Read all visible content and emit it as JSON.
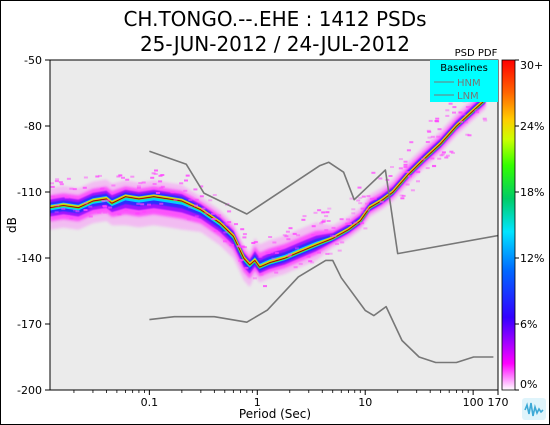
{
  "chart_data": {
    "type": "heatmap",
    "title_lines": [
      "CH.TONGO.--.EHE : 1412 PSDs",
      "25-JUN-2012 / 24-JUL-2012"
    ],
    "xlabel": "Period (Sec)",
    "ylabel": "dB",
    "x_scale": "log",
    "xlim": [
      0.012,
      170
    ],
    "ylim": [
      -200,
      -50
    ],
    "x_ticks": [
      {
        "value": 0.1,
        "label": "0.1"
      },
      {
        "value": 1,
        "label": "1"
      },
      {
        "value": 10,
        "label": "10"
      },
      {
        "value": 100,
        "label": "100"
      },
      {
        "value": 170,
        "label": "170"
      }
    ],
    "y_ticks": [
      {
        "value": -50,
        "label": "-50"
      },
      {
        "value": -80,
        "label": "-80"
      },
      {
        "value": -110,
        "label": "-110"
      },
      {
        "value": -140,
        "label": "-140"
      },
      {
        "value": -170,
        "label": "-170"
      },
      {
        "value": -200,
        "label": "-200"
      }
    ],
    "legend": {
      "title": "PSD PDF",
      "box_title": "Baselines",
      "entries": [
        "HNM",
        "LNM"
      ],
      "position": "top-right"
    },
    "colorbar": {
      "ticks": [
        "30+",
        "24%",
        "18%",
        "12%",
        "6%",
        "0%"
      ],
      "values": [
        30,
        24,
        18,
        12,
        6,
        0
      ]
    },
    "colors": {
      "plot_background": "#ebebeb",
      "noise_model": "#777777",
      "legend_box": "#00ffff",
      "mode_line": "#8b0000"
    },
    "series": [
      {
        "name": "HNM",
        "x": [
          0.1,
          0.22,
          0.32,
          0.8,
          3.8,
          4.6,
          6.3,
          7.9,
          15.4,
          20,
          354.8
        ],
        "y": [
          -91.5,
          -97.4,
          -110.5,
          -120,
          -98,
          -96.5,
          -101,
          -113.5,
          -100,
          -138,
          -127
        ]
      },
      {
        "name": "LNM",
        "x": [
          0.1,
          0.17,
          0.4,
          0.8,
          1.24,
          2.4,
          4.3,
          5,
          6,
          10,
          12,
          15.6,
          21.9,
          31.6,
          45,
          70,
          101,
          154
        ],
        "y": [
          -168,
          -166.7,
          -166.7,
          -169.2,
          -163.7,
          -148.6,
          -141.1,
          -141.1,
          -149,
          -163.8,
          -166.2,
          -162.1,
          -177.5,
          -185,
          -187.5,
          -187.5,
          -185,
          -185
        ]
      },
      {
        "name": "mode",
        "x": [
          0.012,
          0.016,
          0.022,
          0.03,
          0.04,
          0.045,
          0.06,
          0.08,
          0.11,
          0.15,
          0.2,
          0.3,
          0.45,
          0.6,
          0.75,
          0.85,
          0.95,
          1.05,
          1.3,
          1.8,
          2.5,
          3.5,
          5,
          7,
          9,
          11,
          14,
          18,
          25,
          35,
          50,
          70,
          100,
          130
        ],
        "y": [
          -117,
          -116,
          -117,
          -114,
          -113,
          -115,
          -112,
          -113,
          -112,
          -113,
          -114,
          -118,
          -124,
          -130,
          -140,
          -143,
          -141,
          -144,
          -142,
          -140,
          -137,
          -134,
          -131,
          -127,
          -123,
          -117,
          -114,
          -110,
          -102,
          -95,
          -88,
          -80,
          -73,
          -68
        ]
      }
    ]
  }
}
